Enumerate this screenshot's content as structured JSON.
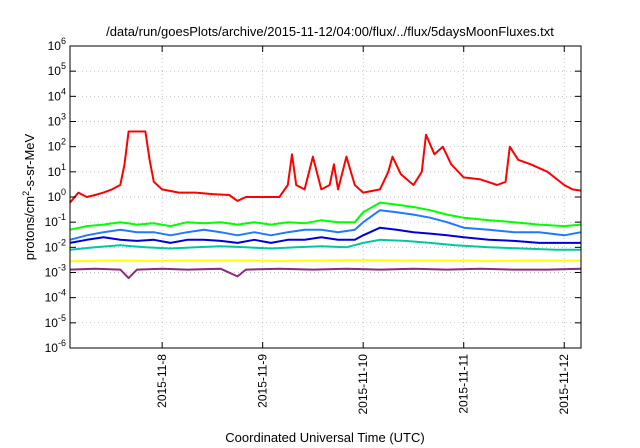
{
  "chart_data": {
    "type": "line",
    "title": "/data/run/goesPlots/archive/2015-11-12/04:00/flux/../flux/5daysMoonFluxes.txt",
    "xlabel": "Coordinated Universal Time (UTC)",
    "ylabel": {
      "base": "protons/cm",
      "sup": "2",
      "rest": "-s-sr-MeV"
    },
    "y_scale": "log",
    "ylim": [
      1e-06,
      1000000.0
    ],
    "y_ticks": [
      {
        "exp": "-6",
        "value": 1e-06
      },
      {
        "exp": "-5",
        "value": 1e-05
      },
      {
        "exp": "-4",
        "value": 0.0001
      },
      {
        "exp": "-3",
        "value": 0.001
      },
      {
        "exp": "-2",
        "value": 0.01
      },
      {
        "exp": "-1",
        "value": 0.1
      },
      {
        "exp": "0",
        "value": 1
      },
      {
        "exp": "1",
        "value": 10
      },
      {
        "exp": "2",
        "value": 100
      },
      {
        "exp": "3",
        "value": 1000
      },
      {
        "exp": "4",
        "value": 10000
      },
      {
        "exp": "5",
        "value": 100000
      },
      {
        "exp": "6",
        "value": 1000000
      }
    ],
    "y_tick_base": "10",
    "xlim": [
      "2015-11-07T02:00",
      "2015-11-12T04:00"
    ],
    "x_ticks": [
      "2015-11-8",
      "2015-11-9",
      "2015-11-10",
      "2015-11-11",
      "2015-11-12"
    ],
    "x_tick_dates": [
      "2015-11-08T00:00",
      "2015-11-09T00:00",
      "2015-11-10T00:00",
      "2015-11-11T00:00",
      "2015-11-12T00:00"
    ],
    "grid": true,
    "series": [
      {
        "color": "#ff0000",
        "points": [
          [
            "2015-11-07T02:00",
            0.6
          ],
          [
            "2015-11-07T04:00",
            1.5
          ],
          [
            "2015-11-07T06:00",
            1.0
          ],
          [
            "2015-11-07T08:00",
            1.2
          ],
          [
            "2015-11-07T10:00",
            1.5
          ],
          [
            "2015-11-07T12:00",
            2.0
          ],
          [
            "2015-11-07T14:00",
            3.0
          ],
          [
            "2015-11-07T15:00",
            20
          ],
          [
            "2015-11-07T16:00",
            400
          ],
          [
            "2015-11-07T18:00",
            400
          ],
          [
            "2015-11-07T20:00",
            400
          ],
          [
            "2015-11-07T21:00",
            30
          ],
          [
            "2015-11-07T22:00",
            4
          ],
          [
            "2015-11-08T00:00",
            2.0
          ],
          [
            "2015-11-08T04:00",
            1.5
          ],
          [
            "2015-11-08T08:00",
            1.5
          ],
          [
            "2015-11-08T12:00",
            1.3
          ],
          [
            "2015-11-08T16:00",
            1.2
          ],
          [
            "2015-11-08T18:00",
            0.7
          ],
          [
            "2015-11-08T20:00",
            1.0
          ],
          [
            "2015-11-09T00:00",
            1.0
          ],
          [
            "2015-11-09T04:00",
            1.0
          ],
          [
            "2015-11-09T06:00",
            3
          ],
          [
            "2015-11-09T07:00",
            50
          ],
          [
            "2015-11-09T08:00",
            3
          ],
          [
            "2015-11-09T10:00",
            2
          ],
          [
            "2015-11-09T12:00",
            40
          ],
          [
            "2015-11-09T14:00",
            2
          ],
          [
            "2015-11-09T16:00",
            3
          ],
          [
            "2015-11-09T17:00",
            20
          ],
          [
            "2015-11-09T18:00",
            2
          ],
          [
            "2015-11-09T20:00",
            40
          ],
          [
            "2015-11-09T22:00",
            3
          ],
          [
            "2015-11-10T00:00",
            1.5
          ],
          [
            "2015-11-10T04:00",
            2
          ],
          [
            "2015-11-10T06:00",
            10
          ],
          [
            "2015-11-10T07:00",
            40
          ],
          [
            "2015-11-10T09:00",
            8
          ],
          [
            "2015-11-10T12:00",
            3
          ],
          [
            "2015-11-10T14:00",
            10
          ],
          [
            "2015-11-10T15:00",
            300
          ],
          [
            "2015-11-10T17:00",
            50
          ],
          [
            "2015-11-10T19:00",
            100
          ],
          [
            "2015-11-10T21:00",
            20
          ],
          [
            "2015-11-11T00:00",
            6
          ],
          [
            "2015-11-11T04:00",
            5
          ],
          [
            "2015-11-11T08:00",
            3
          ],
          [
            "2015-11-11T10:00",
            4
          ],
          [
            "2015-11-11T11:00",
            100
          ],
          [
            "2015-11-11T13:00",
            30
          ],
          [
            "2015-11-11T16:00",
            20
          ],
          [
            "2015-11-11T20:00",
            10
          ],
          [
            "2015-11-12T00:00",
            3
          ],
          [
            "2015-11-12T02:00",
            2
          ],
          [
            "2015-11-12T04:00",
            1.8
          ]
        ]
      },
      {
        "color": "#00ff00",
        "points": [
          [
            "2015-11-07T02:00",
            0.05
          ],
          [
            "2015-11-07T06:00",
            0.07
          ],
          [
            "2015-11-07T10:00",
            0.08
          ],
          [
            "2015-11-07T14:00",
            0.1
          ],
          [
            "2015-11-07T18:00",
            0.08
          ],
          [
            "2015-11-07T22:00",
            0.09
          ],
          [
            "2015-11-08T02:00",
            0.07
          ],
          [
            "2015-11-08T06:00",
            0.1
          ],
          [
            "2015-11-08T10:00",
            0.09
          ],
          [
            "2015-11-08T14:00",
            0.1
          ],
          [
            "2015-11-08T18:00",
            0.08
          ],
          [
            "2015-11-08T22:00",
            0.1
          ],
          [
            "2015-11-09T02:00",
            0.08
          ],
          [
            "2015-11-09T06:00",
            0.1
          ],
          [
            "2015-11-09T10:00",
            0.09
          ],
          [
            "2015-11-09T14:00",
            0.12
          ],
          [
            "2015-11-09T18:00",
            0.1
          ],
          [
            "2015-11-09T22:00",
            0.1
          ],
          [
            "2015-11-10T00:00",
            0.25
          ],
          [
            "2015-11-10T04:00",
            0.6
          ],
          [
            "2015-11-10T08:00",
            0.5
          ],
          [
            "2015-11-10T12:00",
            0.4
          ],
          [
            "2015-11-10T16:00",
            0.3
          ],
          [
            "2015-11-10T20:00",
            0.2
          ],
          [
            "2015-11-11T00:00",
            0.15
          ],
          [
            "2015-11-11T06:00",
            0.12
          ],
          [
            "2015-11-11T12:00",
            0.1
          ],
          [
            "2015-11-11T18:00",
            0.08
          ],
          [
            "2015-11-12T00:00",
            0.07
          ],
          [
            "2015-11-12T04:00",
            0.08
          ]
        ]
      },
      {
        "color": "#1e7bff",
        "points": [
          [
            "2015-11-07T02:00",
            0.02
          ],
          [
            "2015-11-07T06:00",
            0.03
          ],
          [
            "2015-11-07T10:00",
            0.04
          ],
          [
            "2015-11-07T14:00",
            0.05
          ],
          [
            "2015-11-07T18:00",
            0.04
          ],
          [
            "2015-11-07T22:00",
            0.04
          ],
          [
            "2015-11-08T02:00",
            0.03
          ],
          [
            "2015-11-08T06:00",
            0.04
          ],
          [
            "2015-11-08T10:00",
            0.05
          ],
          [
            "2015-11-08T14:00",
            0.04
          ],
          [
            "2015-11-08T18:00",
            0.03
          ],
          [
            "2015-11-08T22:00",
            0.04
          ],
          [
            "2015-11-09T02:00",
            0.03
          ],
          [
            "2015-11-09T06:00",
            0.04
          ],
          [
            "2015-11-09T10:00",
            0.05
          ],
          [
            "2015-11-09T14:00",
            0.05
          ],
          [
            "2015-11-09T18:00",
            0.04
          ],
          [
            "2015-11-09T22:00",
            0.05
          ],
          [
            "2015-11-10T00:00",
            0.1
          ],
          [
            "2015-11-10T04:00",
            0.3
          ],
          [
            "2015-11-10T08:00",
            0.25
          ],
          [
            "2015-11-10T12:00",
            0.2
          ],
          [
            "2015-11-10T16:00",
            0.15
          ],
          [
            "2015-11-10T20:00",
            0.1
          ],
          [
            "2015-11-11T00:00",
            0.06
          ],
          [
            "2015-11-11T06:00",
            0.05
          ],
          [
            "2015-11-11T12:00",
            0.04
          ],
          [
            "2015-11-11T18:00",
            0.04
          ],
          [
            "2015-11-12T00:00",
            0.03
          ],
          [
            "2015-11-12T04:00",
            0.04
          ]
        ]
      },
      {
        "color": "#0000dd",
        "points": [
          [
            "2015-11-07T02:00",
            0.015
          ],
          [
            "2015-11-07T06:00",
            0.02
          ],
          [
            "2015-11-07T10:00",
            0.025
          ],
          [
            "2015-11-07T14:00",
            0.02
          ],
          [
            "2015-11-07T18:00",
            0.018
          ],
          [
            "2015-11-07T22:00",
            0.02
          ],
          [
            "2015-11-08T02:00",
            0.015
          ],
          [
            "2015-11-08T06:00",
            0.02
          ],
          [
            "2015-11-08T10:00",
            0.02
          ],
          [
            "2015-11-08T14:00",
            0.018
          ],
          [
            "2015-11-08T18:00",
            0.015
          ],
          [
            "2015-11-08T22:00",
            0.02
          ],
          [
            "2015-11-09T02:00",
            0.015
          ],
          [
            "2015-11-09T06:00",
            0.02
          ],
          [
            "2015-11-09T10:00",
            0.02
          ],
          [
            "2015-11-09T14:00",
            0.025
          ],
          [
            "2015-11-09T18:00",
            0.02
          ],
          [
            "2015-11-09T22:00",
            0.02
          ],
          [
            "2015-11-10T00:00",
            0.03
          ],
          [
            "2015-11-10T04:00",
            0.06
          ],
          [
            "2015-11-10T08:00",
            0.05
          ],
          [
            "2015-11-10T12:00",
            0.04
          ],
          [
            "2015-11-10T16:00",
            0.035
          ],
          [
            "2015-11-10T20:00",
            0.03
          ],
          [
            "2015-11-11T00:00",
            0.025
          ],
          [
            "2015-11-11T06:00",
            0.02
          ],
          [
            "2015-11-11T12:00",
            0.018
          ],
          [
            "2015-11-11T18:00",
            0.015
          ],
          [
            "2015-11-12T00:00",
            0.015
          ],
          [
            "2015-11-12T04:00",
            0.015
          ]
        ]
      },
      {
        "color": "#00c8a0",
        "points": [
          [
            "2015-11-07T02:00",
            0.008
          ],
          [
            "2015-11-07T08:00",
            0.01
          ],
          [
            "2015-11-07T14:00",
            0.012
          ],
          [
            "2015-11-07T20:00",
            0.01
          ],
          [
            "2015-11-08T02:00",
            0.009
          ],
          [
            "2015-11-08T08:00",
            0.01
          ],
          [
            "2015-11-08T14:00",
            0.011
          ],
          [
            "2015-11-08T20:00",
            0.01
          ],
          [
            "2015-11-09T02:00",
            0.009
          ],
          [
            "2015-11-09T08:00",
            0.01
          ],
          [
            "2015-11-09T14:00",
            0.011
          ],
          [
            "2015-11-09T20:00",
            0.01
          ],
          [
            "2015-11-10T00:00",
            0.015
          ],
          [
            "2015-11-10T04:00",
            0.02
          ],
          [
            "2015-11-10T10:00",
            0.018
          ],
          [
            "2015-11-10T16:00",
            0.015
          ],
          [
            "2015-11-10T22:00",
            0.012
          ],
          [
            "2015-11-11T06:00",
            0.01
          ],
          [
            "2015-11-11T14:00",
            0.009
          ],
          [
            "2015-11-11T22:00",
            0.008
          ],
          [
            "2015-11-12T04:00",
            0.008
          ]
        ]
      },
      {
        "color": "#ffff00",
        "points": [
          [
            "2015-11-07T02:00",
            0.0028
          ],
          [
            "2015-11-07T12:00",
            0.003
          ],
          [
            "2015-11-07T22:00",
            0.0029
          ],
          [
            "2015-11-08T08:00",
            0.003
          ],
          [
            "2015-11-08T18:00",
            0.003
          ],
          [
            "2015-11-09T04:00",
            0.0029
          ],
          [
            "2015-11-09T14:00",
            0.003
          ],
          [
            "2015-11-10T00:00",
            0.0031
          ],
          [
            "2015-11-10T10:00",
            0.003
          ],
          [
            "2015-11-10T20:00",
            0.003
          ],
          [
            "2015-11-11T06:00",
            0.0029
          ],
          [
            "2015-11-11T16:00",
            0.003
          ],
          [
            "2015-11-12T02:00",
            0.003
          ],
          [
            "2015-11-12T04:00",
            0.003
          ]
        ]
      },
      {
        "color": "#8b2a7a",
        "points": [
          [
            "2015-11-07T02:00",
            0.0013
          ],
          [
            "2015-11-07T08:00",
            0.0014
          ],
          [
            "2015-11-07T14:00",
            0.0013
          ],
          [
            "2015-11-07T16:00",
            0.0006
          ],
          [
            "2015-11-07T18:00",
            0.0013
          ],
          [
            "2015-11-08T00:00",
            0.0014
          ],
          [
            "2015-11-08T06:00",
            0.0013
          ],
          [
            "2015-11-08T14:00",
            0.0014
          ],
          [
            "2015-11-08T18:00",
            0.0007
          ],
          [
            "2015-11-08T20:00",
            0.0013
          ],
          [
            "2015-11-09T04:00",
            0.0014
          ],
          [
            "2015-11-09T12:00",
            0.0013
          ],
          [
            "2015-11-09T20:00",
            0.0014
          ],
          [
            "2015-11-10T04:00",
            0.0013
          ],
          [
            "2015-11-10T12:00",
            0.0014
          ],
          [
            "2015-11-10T20:00",
            0.0013
          ],
          [
            "2015-11-11T04:00",
            0.0014
          ],
          [
            "2015-11-11T12:00",
            0.0013
          ],
          [
            "2015-11-11T20:00",
            0.0013
          ],
          [
            "2015-11-12T04:00",
            0.0014
          ]
        ]
      }
    ]
  }
}
